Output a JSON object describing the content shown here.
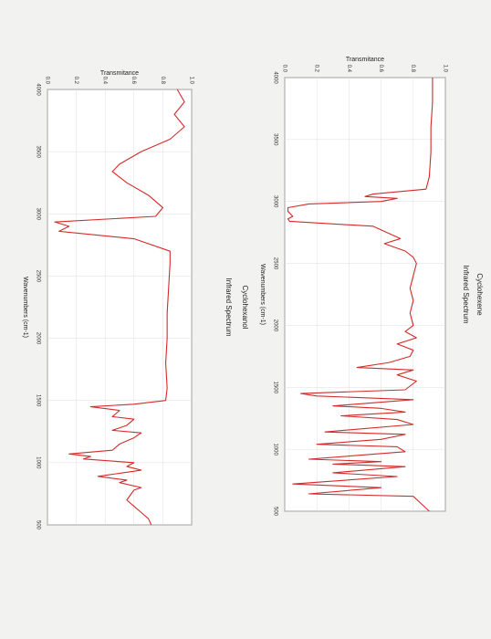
{
  "chart_data": [
    {
      "type": "line",
      "title": "Cyclohexene",
      "subtitle": "Infrared Spectrum",
      "x_label": "Wavenumbers (cm-1)",
      "y_label": "Transmitance",
      "color": "#d42a2a",
      "grid": true,
      "x": [
        4000,
        3800,
        3600,
        3400,
        3200,
        3100,
        3060,
        3040,
        3025,
        3000,
        2980,
        2950,
        2920,
        2880,
        2860,
        2840,
        2800,
        2700,
        2660,
        2600,
        2550,
        2500,
        2400,
        2300,
        2200,
        2100,
        2000,
        1950,
        1900,
        1850,
        1800,
        1750,
        1700,
        1660,
        1640,
        1600,
        1550,
        1480,
        1450,
        1430,
        1400,
        1350,
        1330,
        1300,
        1270,
        1240,
        1200,
        1140,
        1120,
        1080,
        1040,
        1020,
        980,
        920,
        900,
        880,
        860,
        810,
        780,
        720,
        690,
        640,
        620,
        560,
        500
      ],
      "values": [
        0.92,
        0.92,
        0.91,
        0.91,
        0.9,
        0.88,
        0.55,
        0.5,
        0.7,
        0.6,
        0.15,
        0.02,
        0.02,
        0.05,
        0.02,
        0.03,
        0.55,
        0.72,
        0.62,
        0.75,
        0.8,
        0.82,
        0.8,
        0.78,
        0.8,
        0.78,
        0.8,
        0.75,
        0.82,
        0.7,
        0.8,
        0.78,
        0.65,
        0.45,
        0.8,
        0.7,
        0.82,
        0.75,
        0.1,
        0.2,
        0.8,
        0.3,
        0.6,
        0.75,
        0.35,
        0.7,
        0.8,
        0.25,
        0.75,
        0.6,
        0.2,
        0.7,
        0.75,
        0.15,
        0.6,
        0.3,
        0.75,
        0.3,
        0.7,
        0.05,
        0.6,
        0.15,
        0.8,
        0.85,
        0.9
      ],
      "xlim": [
        4000,
        500
      ],
      "xticks": [
        4000,
        3500,
        3000,
        2500,
        2000,
        1500,
        1000,
        500
      ],
      "ylim": [
        0,
        1
      ],
      "yticks": [
        {
          "value": 0,
          "label": "0.0"
        },
        0.2,
        0.4,
        0.6,
        0.8,
        {
          "value": 1,
          "label": "1.0"
        }
      ]
    },
    {
      "type": "line",
      "title": "Cyclohexanol",
      "subtitle": "Infrared Spectrum",
      "x_label": "Wavenumbers (cm-1)",
      "y_label": "Transmitance",
      "color": "#d42a2a",
      "grid": true,
      "x": [
        4000,
        3900,
        3800,
        3700,
        3600,
        3500,
        3400,
        3340,
        3250,
        3150,
        3050,
        2980,
        2935,
        2900,
        2860,
        2800,
        2700,
        2600,
        2400,
        2200,
        2000,
        1800,
        1600,
        1500,
        1470,
        1450,
        1420,
        1370,
        1350,
        1300,
        1260,
        1240,
        1200,
        1150,
        1100,
        1070,
        1050,
        1030,
        1000,
        970,
        940,
        890,
        860,
        840,
        800,
        780,
        700,
        650,
        600,
        550,
        500
      ],
      "values": [
        0.9,
        0.95,
        0.88,
        0.95,
        0.85,
        0.65,
        0.5,
        0.45,
        0.55,
        0.7,
        0.8,
        0.75,
        0.05,
        0.15,
        0.08,
        0.6,
        0.85,
        0.85,
        0.84,
        0.83,
        0.83,
        0.82,
        0.83,
        0.82,
        0.6,
        0.3,
        0.5,
        0.45,
        0.6,
        0.55,
        0.45,
        0.65,
        0.6,
        0.5,
        0.45,
        0.15,
        0.3,
        0.25,
        0.6,
        0.55,
        0.65,
        0.35,
        0.55,
        0.5,
        0.65,
        0.6,
        0.55,
        0.6,
        0.65,
        0.7,
        0.72
      ],
      "xlim": [
        4000,
        500
      ],
      "xticks": [
        4000,
        3500,
        3000,
        2500,
        2000,
        1500,
        1000,
        500
      ],
      "ylim": [
        0,
        1
      ],
      "yticks": [
        {
          "value": 0,
          "label": "0.0"
        },
        0.2,
        0.4,
        0.6,
        0.8,
        {
          "value": 1,
          "label": "1.0"
        }
      ]
    }
  ]
}
